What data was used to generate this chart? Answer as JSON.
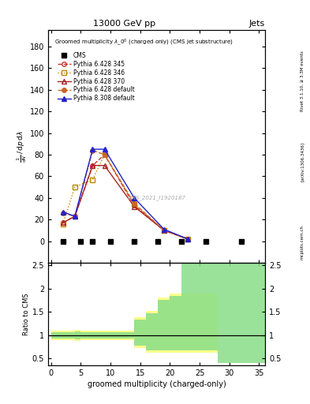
{
  "title_top": "13000 GeV pp",
  "title_right": "Jets",
  "watermark": "CMS_2021_I1920187",
  "rivet_label": "Rivet 3.1.10, ≥ 3.3M events",
  "arxiv_label": "[arXiv:1306.3436]",
  "mcplots_label": "mcplots.cern.ch",
  "xlabel": "groomed multiplicity (charged-only)",
  "cms_x": [
    2,
    5,
    7,
    10,
    14,
    18,
    22,
    26,
    32
  ],
  "cms_y": [
    0,
    0,
    0,
    0,
    0,
    0,
    0,
    0,
    0
  ],
  "p6_345_x": [
    2,
    4,
    7,
    9,
    14,
    19,
    23
  ],
  "p6_345_y": [
    17,
    23,
    70,
    80,
    33,
    10,
    2
  ],
  "p6_346_x": [
    2,
    4,
    7,
    9,
    14,
    19,
    23
  ],
  "p6_346_y": [
    16,
    50,
    57,
    80,
    34,
    10,
    2
  ],
  "p6_370_x": [
    2,
    4,
    7,
    9,
    14,
    19,
    23
  ],
  "p6_370_y": [
    17,
    23,
    70,
    70,
    32,
    10,
    2
  ],
  "p6_def_x": [
    2,
    4,
    7,
    9,
    14,
    19,
    23
  ],
  "p6_def_y": [
    26,
    23,
    84,
    80,
    35,
    10,
    2
  ],
  "p8_def_x": [
    2,
    4,
    7,
    9,
    14,
    19,
    23
  ],
  "p8_def_y": [
    27,
    23,
    85,
    85,
    40,
    11,
    2
  ],
  "ylim_main": [
    -20,
    195
  ],
  "ylim_ratio": [
    0.35,
    2.55
  ],
  "xlim": [
    -0.5,
    36
  ],
  "yticks_main": [
    0,
    20,
    40,
    60,
    80,
    100,
    120,
    140,
    160,
    180
  ],
  "ratio_yticks": [
    0.5,
    1.0,
    1.5,
    2.0,
    2.5
  ],
  "ratio_ytick_labels": [
    "0.5",
    "1",
    "1.5",
    "2",
    "2.5"
  ],
  "color_345": "#cc3333",
  "color_346": "#bb8800",
  "color_370": "#aa2222",
  "color_def6": "#cc6622",
  "color_def8": "#2222cc",
  "ratio_yellow_edges": [
    0,
    4,
    5,
    12,
    14,
    16,
    18,
    20,
    22,
    28
  ],
  "ratio_yellow_low": [
    0.9,
    0.88,
    0.9,
    0.9,
    0.72,
    0.62,
    0.62,
    0.62,
    0.62
  ],
  "ratio_yellow_high": [
    1.1,
    1.12,
    1.1,
    1.1,
    1.38,
    1.52,
    1.8,
    1.9,
    1.9
  ],
  "ratio_green_edges": [
    0,
    4,
    5,
    12,
    14,
    16,
    18,
    20,
    22,
    28,
    36
  ],
  "ratio_green_low": [
    0.93,
    0.92,
    0.93,
    0.93,
    0.77,
    0.67,
    0.67,
    0.67,
    0.67,
    0.4
  ],
  "ratio_green_high": [
    1.07,
    1.08,
    1.07,
    1.07,
    1.33,
    1.47,
    1.75,
    1.85,
    3.5,
    3.5
  ]
}
